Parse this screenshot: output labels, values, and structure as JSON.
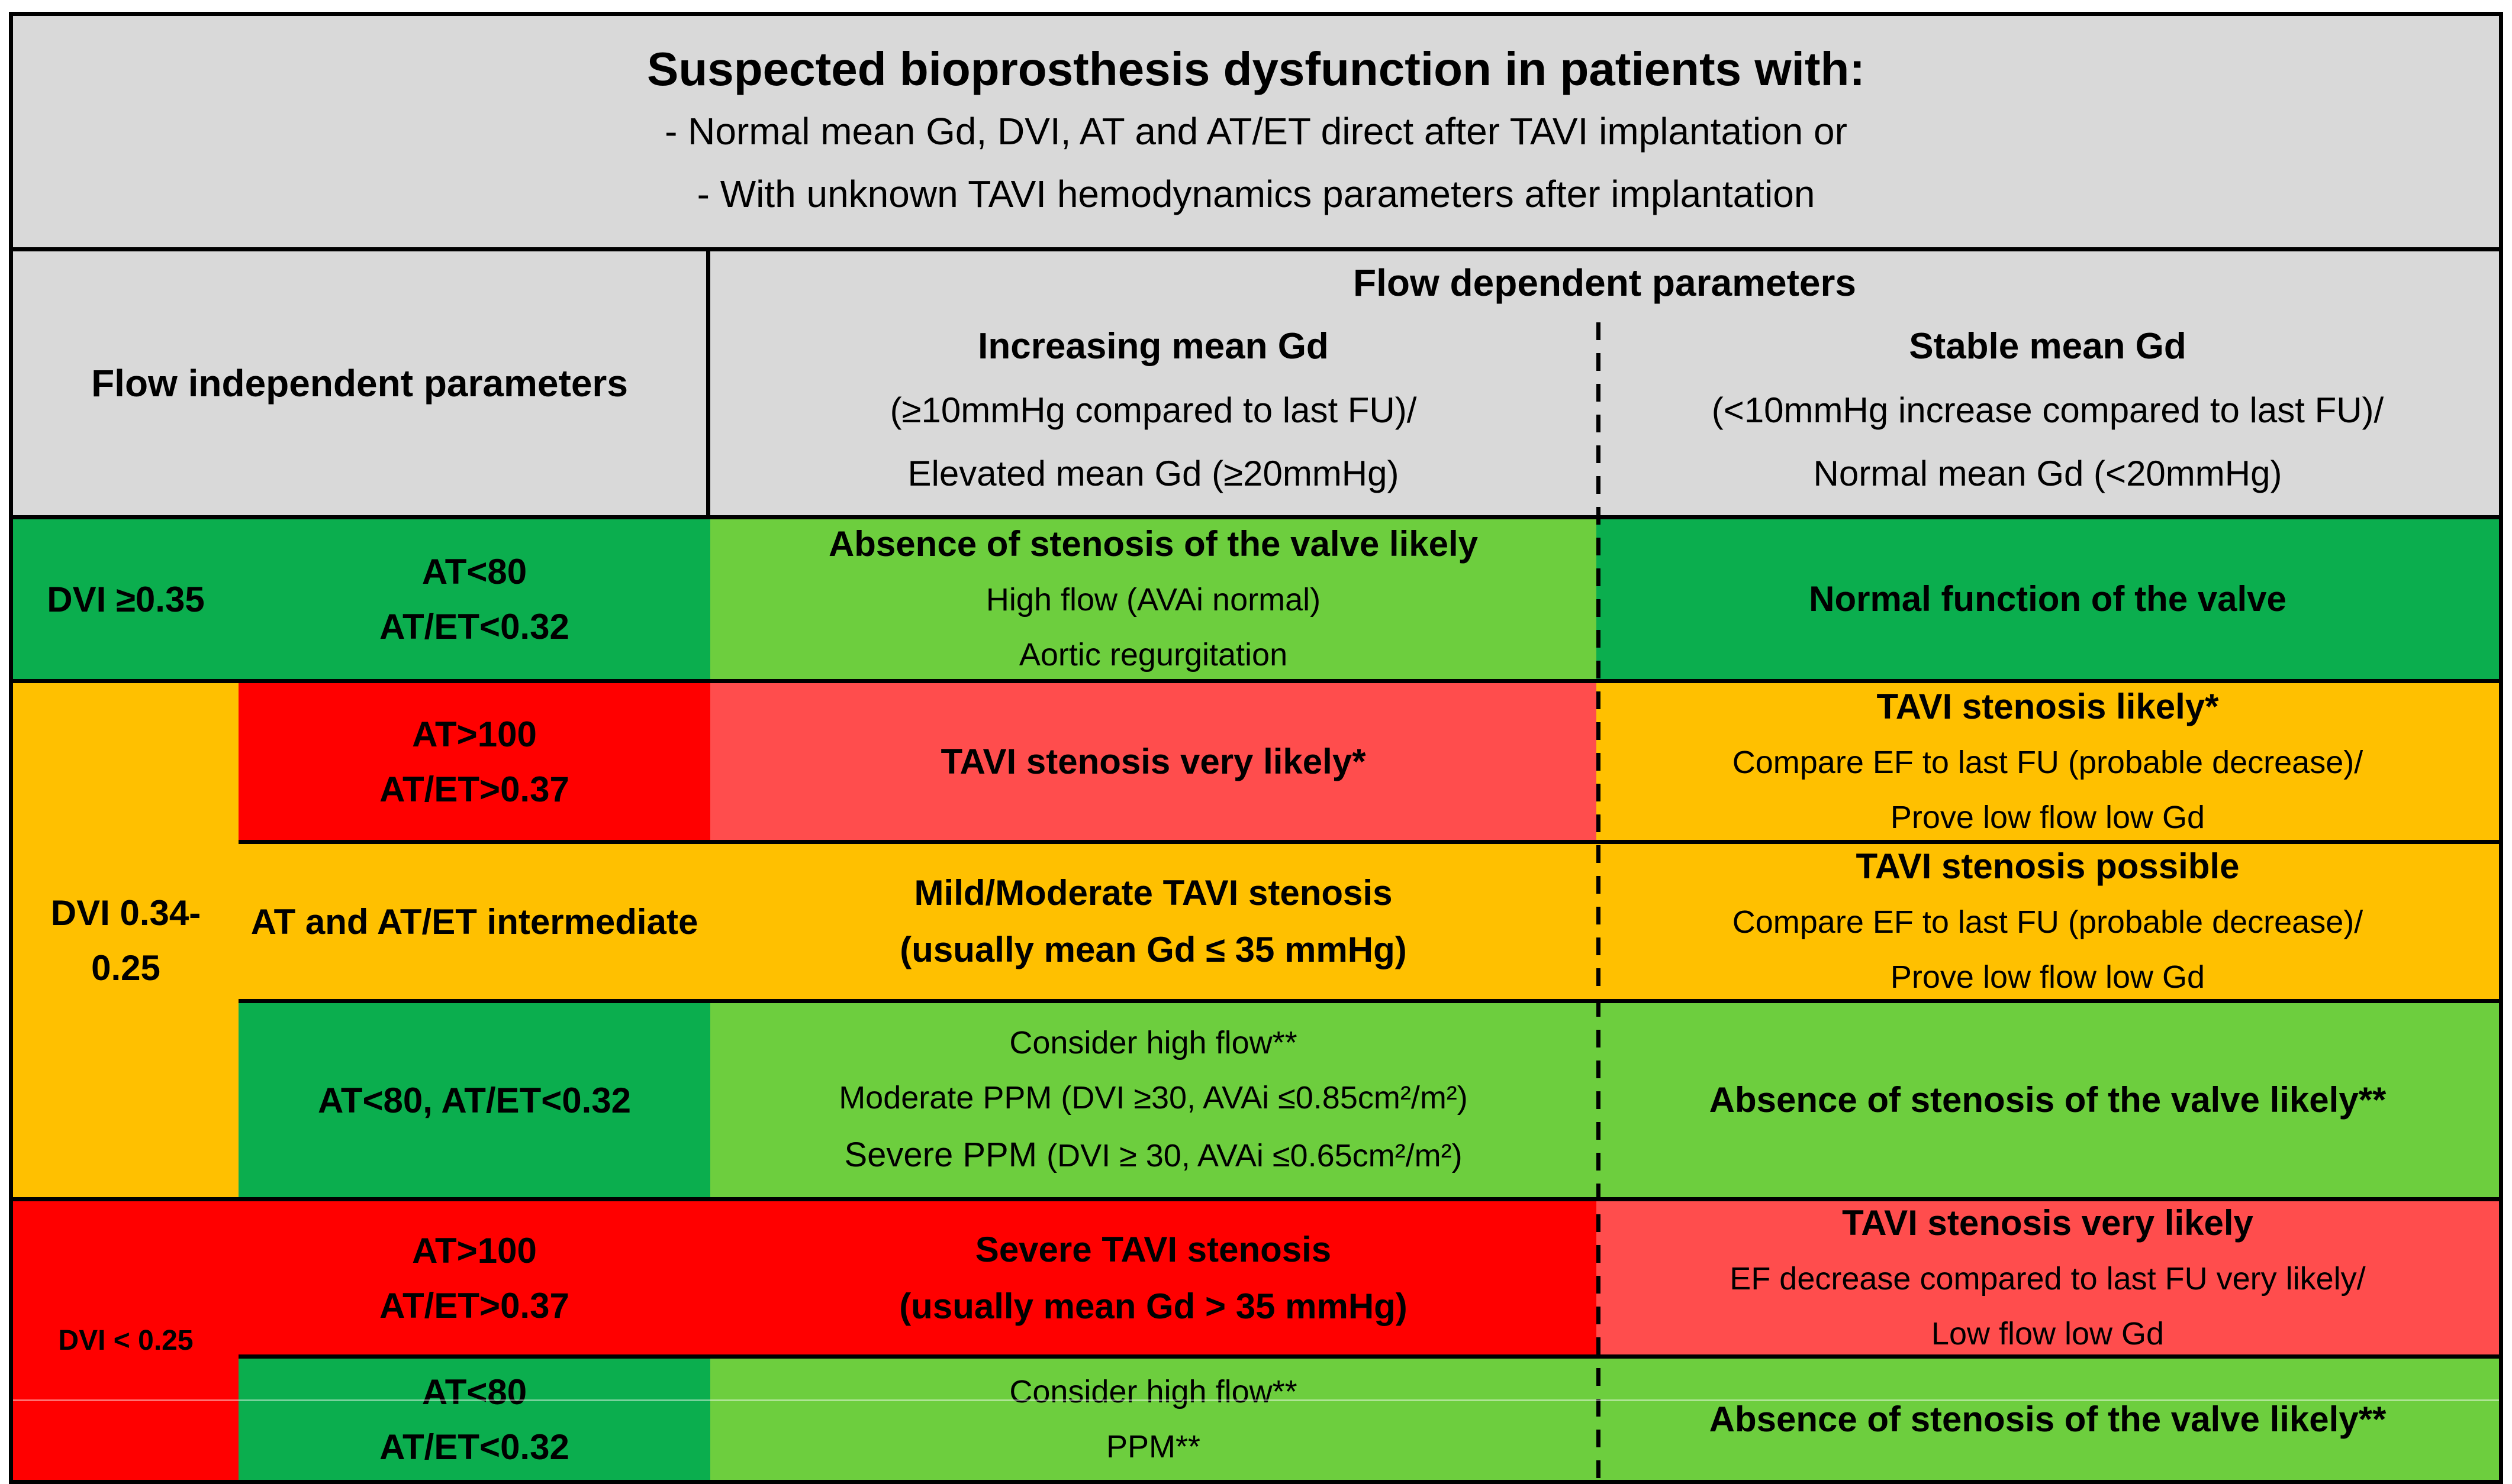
{
  "colors": {
    "header_gray": "#d9d9d9",
    "dark_green": "#0bae4e",
    "light_green": "#6dce3e",
    "amber": "#ffc000",
    "red": "#ff0000",
    "salmon": "#ff4d4d",
    "border": "#000000"
  },
  "title": {
    "heading": "Suspected bioprosthesis dysfunction in patients with:",
    "bullet1": "- Normal mean Gd, DVI, AT and AT/ET direct after TAVI implantation or",
    "bullet2": "- With unknown TAVI hemodynamics parameters after implantation"
  },
  "header": {
    "flow_independent": "Flow independent parameters",
    "flow_dependent": "Flow dependent parameters",
    "increasing": {
      "title": "Increasing mean Gd",
      "line2": "(≥10mmHg compared to last FU)/",
      "line3": "Elevated mean Gd (≥20mmHg)"
    },
    "stable": {
      "title": "Stable mean Gd",
      "line2": "(<10mmHg increase compared to last FU)/",
      "line3": "Normal mean Gd (<20mmHg)"
    }
  },
  "rows": {
    "r1": {
      "dvi": "DVI ≥0.35",
      "at_line1": "AT<80",
      "at_line2": "AT/ET<0.32",
      "mid": {
        "title": "Absence of stenosis of the valve likely",
        "line2": "High flow (AVAi normal)",
        "line3": "Aortic regurgitation"
      },
      "right": {
        "title": "Normal function of the valve"
      }
    },
    "r2": {
      "dvi_line1": "DVI 0.34-",
      "dvi_line2": "0.25",
      "a": {
        "at_line1": "AT>100",
        "at_line2": "AT/ET>0.37",
        "mid": {
          "title": "TAVI stenosis very likely*"
        },
        "right": {
          "title": "TAVI stenosis likely*",
          "line2": "Compare EF to last FU (probable decrease)/",
          "line3": "Prove low flow low Gd"
        }
      },
      "b": {
        "at": "AT and AT/ET intermediate",
        "mid": {
          "title": "Mild/Moderate TAVI stenosis",
          "line2": "(usually mean Gd ≤ 35 mmHg)"
        },
        "right": {
          "title": "TAVI stenosis possible",
          "line2": "Compare EF to last FU (probable decrease)/",
          "line3": "Prove low flow low Gd"
        }
      },
      "c": {
        "at": "AT<80, AT/ET<0.32",
        "mid": {
          "line1": "Consider high flow**",
          "line2": "Moderate PPM (DVI ≥30, AVAi ≤0.85cm²/m²)",
          "line3_lead": "Severe PPM ",
          "line3_rest": "(DVI ≥ 30, AVAi ≤0.65cm²/m²)"
        },
        "right": {
          "title": "Absence of stenosis of the valve likely**"
        }
      }
    },
    "r3": {
      "dvi": "DVI < 0.25",
      "a": {
        "at_line1": "AT>100",
        "at_line2": "AT/ET>0.37",
        "mid": {
          "title": "Severe TAVI stenosis",
          "line2": "(usually mean Gd > 35 mmHg)"
        },
        "right": {
          "title": "TAVI stenosis very likely",
          "line2": "EF decrease compared to last FU very likely/",
          "line3": "Low flow low Gd"
        }
      },
      "b": {
        "at_line1": "AT<80",
        "at_line2": "AT/ET<0.32",
        "mid": {
          "line1": "Consider high flow**",
          "line2": "PPM**"
        },
        "right": {
          "title": "Absence of stenosis of the valve likely**"
        }
      }
    }
  }
}
